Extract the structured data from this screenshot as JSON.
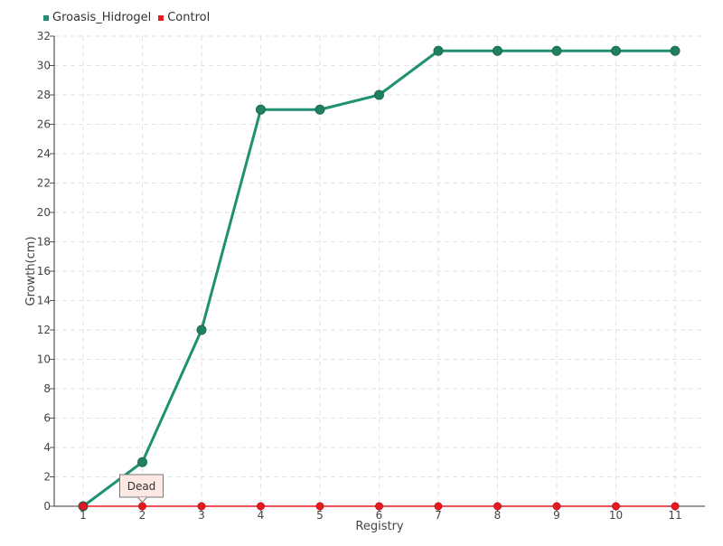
{
  "chart_data": {
    "type": "line",
    "xlabel": "Registry",
    "ylabel": "Growth(cm)",
    "ylim": [
      0,
      32
    ],
    "y_ticks": [
      0,
      2,
      4,
      6,
      8,
      10,
      12,
      14,
      16,
      18,
      20,
      22,
      24,
      26,
      28,
      30,
      32
    ],
    "categories": [
      "1",
      "2",
      "3",
      "4",
      "5",
      "6",
      "7",
      "8",
      "9",
      "10",
      "11"
    ],
    "grid": true,
    "legend_position": "top-left",
    "series": [
      {
        "name": "Groasis_Hidrogel",
        "color": "#1f9173",
        "values": [
          0,
          3,
          12,
          27,
          27,
          28,
          31,
          31,
          31,
          31,
          31
        ]
      },
      {
        "name": "Control",
        "color": "#e8191f",
        "values": [
          0,
          0,
          0,
          0,
          0,
          0,
          0,
          0,
          0,
          0,
          0
        ]
      }
    ],
    "annotations": [
      {
        "text": "Dead",
        "x": "2",
        "y": 0
      }
    ]
  }
}
